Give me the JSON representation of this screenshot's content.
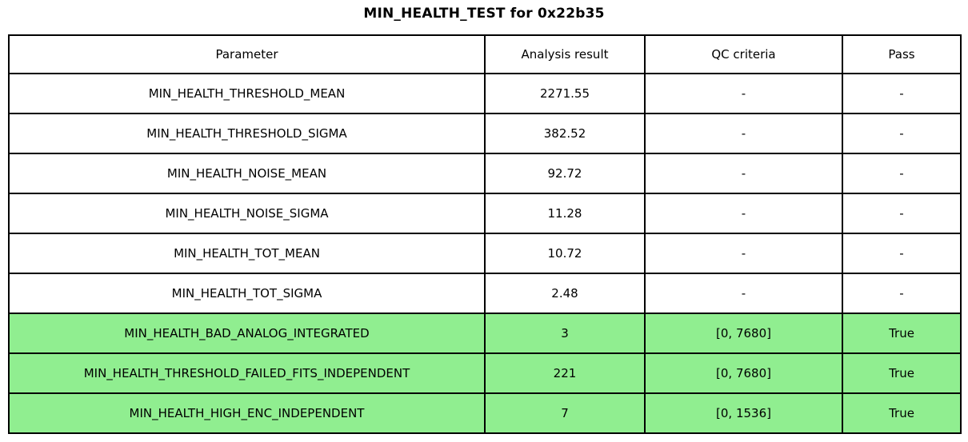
{
  "title": "MIN_HEALTH_TEST for 0x22b35",
  "colors": {
    "pass_highlight": "#90EE90",
    "border": "#000000",
    "text": "#000000",
    "background": "#FFFFFF"
  },
  "chart_data": {
    "type": "table",
    "title": "MIN_HEALTH_TEST for 0x22b35",
    "columns": [
      "Parameter",
      "Analysis result",
      "QC criteria",
      "Pass"
    ],
    "rows": [
      {
        "parameter": "MIN_HEALTH_THRESHOLD_MEAN",
        "analysis_result": "2271.55",
        "qc_criteria": "-",
        "pass": "-",
        "highlighted": false
      },
      {
        "parameter": "MIN_HEALTH_THRESHOLD_SIGMA",
        "analysis_result": "382.52",
        "qc_criteria": "-",
        "pass": "-",
        "highlighted": false
      },
      {
        "parameter": "MIN_HEALTH_NOISE_MEAN",
        "analysis_result": "92.72",
        "qc_criteria": "-",
        "pass": "-",
        "highlighted": false
      },
      {
        "parameter": "MIN_HEALTH_NOISE_SIGMA",
        "analysis_result": "11.28",
        "qc_criteria": "-",
        "pass": "-",
        "highlighted": false
      },
      {
        "parameter": "MIN_HEALTH_TOT_MEAN",
        "analysis_result": "10.72",
        "qc_criteria": "-",
        "pass": "-",
        "highlighted": false
      },
      {
        "parameter": "MIN_HEALTH_TOT_SIGMA",
        "analysis_result": "2.48",
        "qc_criteria": "-",
        "pass": "-",
        "highlighted": false
      },
      {
        "parameter": "MIN_HEALTH_BAD_ANALOG_INTEGRATED",
        "analysis_result": "3",
        "qc_criteria": "[0, 7680]",
        "pass": "True",
        "highlighted": true
      },
      {
        "parameter": "MIN_HEALTH_THRESHOLD_FAILED_FITS_INDEPENDENT",
        "analysis_result": "221",
        "qc_criteria": "[0, 7680]",
        "pass": "True",
        "highlighted": true
      },
      {
        "parameter": "MIN_HEALTH_HIGH_ENC_INDEPENDENT",
        "analysis_result": "7",
        "qc_criteria": "[0, 1536]",
        "pass": "True",
        "highlighted": true
      }
    ]
  }
}
